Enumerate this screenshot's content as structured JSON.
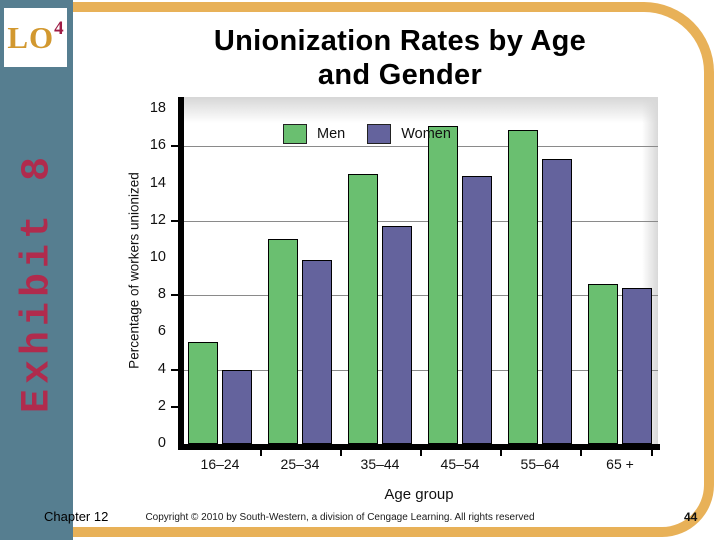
{
  "lo_badge": {
    "text": "LO",
    "superscript": "4"
  },
  "exhibit_label": "Exhibit 8",
  "title": {
    "line1": "Unionization Rates by Age",
    "line2": "and Gender"
  },
  "chart_data": {
    "type": "bar",
    "title": "Unionization Rates by Age and Gender",
    "categories": [
      "16–24",
      "25–34",
      "35–44",
      "45–54",
      "55–64",
      "65 +"
    ],
    "series": [
      {
        "name": "Men",
        "color": "#6abf70",
        "values": [
          5.5,
          11.0,
          14.5,
          17.1,
          16.9,
          8.6
        ]
      },
      {
        "name": "Women",
        "color": "#64639d",
        "values": [
          4.0,
          9.9,
          11.7,
          14.4,
          15.3,
          8.4
        ]
      }
    ],
    "xlabel": "Age group",
    "ylabel": "Percentage of workers unionized",
    "ylim": [
      0,
      19
    ],
    "yticks": [
      0,
      2,
      4,
      6,
      8,
      10,
      12,
      14,
      16,
      18
    ],
    "ytick_dash_values": [
      2,
      4,
      8,
      12,
      16
    ],
    "gridline_values": [
      4,
      8,
      12,
      16
    ],
    "grid": true,
    "legend_position": "top-left-inside"
  },
  "footer": {
    "chapter": "Chapter 12",
    "copyright": "Copyright © 2010 by South-Western, a division of Cengage Learning.  All rights reserved",
    "page_number": "44"
  },
  "colors": {
    "sidebar_teal": "#567e90",
    "frame_gold": "#e8b158",
    "exhibit_red": "#b02b4d",
    "lo_gold": "#d2982f",
    "lo_sup_red": "#9e1b44",
    "bar_men_green": "#6abf70",
    "bar_women_purple": "#64639d",
    "gridline_gray": "#8a8a8a"
  }
}
